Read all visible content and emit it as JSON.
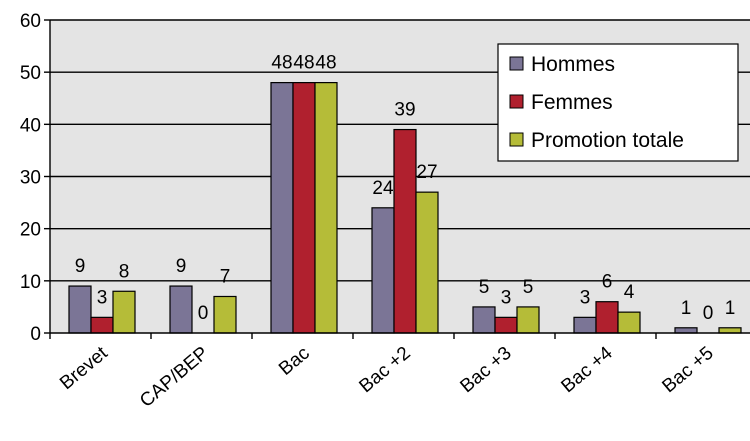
{
  "chart_data": {
    "type": "bar",
    "categories": [
      "Brevet",
      "CAP/BEP",
      "Bac",
      "Bac +2",
      "Bac +3",
      "Bac +4",
      "Bac +5"
    ],
    "series": [
      {
        "name": "Hommes",
        "values": [
          9,
          9,
          48,
          24,
          5,
          3,
          1
        ],
        "color": "#7B7596"
      },
      {
        "name": "Femmes",
        "values": [
          3,
          0,
          48,
          39,
          3,
          6,
          0
        ],
        "color": "#B0202E"
      },
      {
        "name": "Promotion totale",
        "values": [
          8,
          7,
          48,
          27,
          5,
          4,
          1
        ],
        "color": "#B5BC38"
      }
    ],
    "ylim": [
      0,
      60
    ],
    "yticks": [
      0,
      10,
      20,
      30,
      40,
      50,
      60
    ],
    "grid": true,
    "legend": "top-right",
    "plot_background": "#E4E4E4"
  }
}
